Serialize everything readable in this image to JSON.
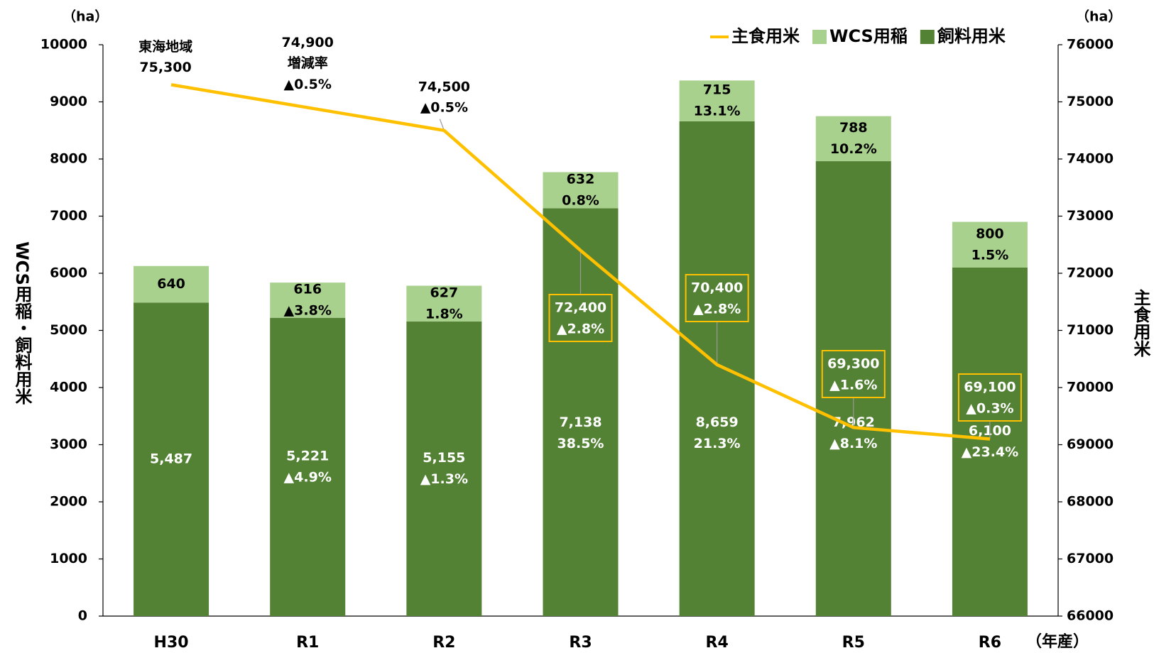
{
  "chart_data": {
    "type": "bar",
    "categories": [
      "H30",
      "R1",
      "R2",
      "R3",
      "R4",
      "R5",
      "R6"
    ],
    "series": [
      {
        "name": "主食用米",
        "type": "line",
        "axis": "y2",
        "color": "#ffc000",
        "values": [
          75300,
          74900,
          74500,
          72400,
          70400,
          69300,
          69100
        ],
        "value_labels": [
          "75,300",
          "74,900",
          "74,500",
          "72,400",
          "70,400",
          "69,300",
          "69,100"
        ],
        "change_labels": [
          null,
          "▲0.5%",
          "▲0.5%",
          "▲2.8%",
          "▲2.8%",
          "▲1.6%",
          "▲0.3%"
        ]
      },
      {
        "name": "WCS用稲",
        "type": "bar",
        "color": "#a9d18e",
        "values": [
          640,
          616,
          627,
          632,
          715,
          788,
          800
        ],
        "change_labels": [
          null,
          "▲3.8%",
          "1.8%",
          "0.8%",
          "13.1%",
          "10.2%",
          "1.5%"
        ]
      },
      {
        "name": "飼料用米",
        "type": "bar",
        "color": "#548235",
        "values": [
          5487,
          5221,
          5155,
          7138,
          8659,
          7962,
          6100
        ],
        "value_labels": [
          "5,487",
          "5,221",
          "5,155",
          "7,138",
          "8,659",
          "7,962",
          "6,100"
        ],
        "change_labels": [
          null,
          "▲4.9%",
          "▲1.3%",
          "38.5%",
          "21.3%",
          "▲8.1%",
          "▲23.4%"
        ]
      }
    ],
    "ylim": [
      0,
      10000
    ],
    "yticks": [
      0,
      1000,
      2000,
      3000,
      4000,
      5000,
      6000,
      7000,
      8000,
      9000,
      10000
    ],
    "y2lim": [
      66000,
      76000
    ],
    "y2ticks": [
      66000,
      67000,
      68000,
      69000,
      70000,
      71000,
      72000,
      73000,
      74000,
      75000,
      76000
    ],
    "y_label": "WCS用稲・飼料用米",
    "y2_label": "主食用米",
    "y_unit": "（ha）",
    "y2_unit": "（ha）",
    "x_unit": "（年産）",
    "annotations": [
      "東海地域",
      "増減率"
    ],
    "legend": "top-right"
  }
}
